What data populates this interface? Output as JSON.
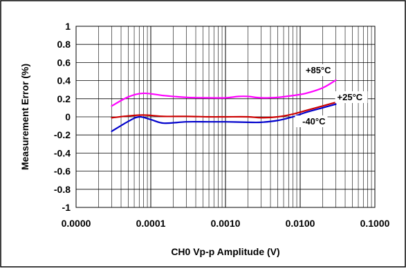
{
  "chart_data": {
    "type": "line",
    "title": "",
    "xlabel": "CH0 Vp-p Amplitude (V)",
    "ylabel": "Measurement Error (%)",
    "x_scale": "log",
    "xlim": [
      1e-05,
      0.1
    ],
    "ylim": [
      -1,
      1
    ],
    "x_ticks": [
      1e-05,
      0.0001,
      0.001,
      0.01,
      0.1
    ],
    "x_tick_labels": [
      "0.0000",
      "0.0001",
      "0.0010",
      "0.0100",
      "0.1000"
    ],
    "y_ticks": [
      -1,
      -0.8,
      -0.6,
      -0.4,
      -0.2,
      0,
      0.2,
      0.4,
      0.6,
      0.8,
      1
    ],
    "y_tick_labels": [
      "-1",
      "-0.8",
      "-0.6",
      "-0.4",
      "-0.2",
      "0",
      "0.2",
      "0.4",
      "0.6",
      "0.8",
      "1"
    ],
    "grid": {
      "x_major": true,
      "x_minor": true,
      "y_major": true
    },
    "legend": "none",
    "series": [
      {
        "name": "+85°C",
        "color": "#ff00ff",
        "points": [
          [
            3e-05,
            0.12
          ],
          [
            5e-05,
            0.22
          ],
          [
            8e-05,
            0.26
          ],
          [
            0.00015,
            0.235
          ],
          [
            0.0003,
            0.215
          ],
          [
            0.0006,
            0.21
          ],
          [
            0.001,
            0.21
          ],
          [
            0.0015,
            0.225
          ],
          [
            0.002,
            0.225
          ],
          [
            0.003,
            0.21
          ],
          [
            0.005,
            0.215
          ],
          [
            0.008,
            0.235
          ],
          [
            0.012,
            0.26
          ],
          [
            0.02,
            0.32
          ],
          [
            0.03,
            0.405
          ]
        ]
      },
      {
        "name": "+25°C",
        "color": "#cc0000",
        "points": [
          [
            3e-05,
            -0.01
          ],
          [
            5e-05,
            0.01
          ],
          [
            8e-05,
            0.02
          ],
          [
            0.00015,
            0.005
          ],
          [
            0.0003,
            0.005
          ],
          [
            0.0006,
            0.0
          ],
          [
            0.001,
            0.0
          ],
          [
            0.002,
            0.0
          ],
          [
            0.003,
            -0.01
          ],
          [
            0.005,
            0.0
          ],
          [
            0.008,
            0.03
          ],
          [
            0.012,
            0.07
          ],
          [
            0.02,
            0.12
          ],
          [
            0.03,
            0.16
          ]
        ]
      },
      {
        "name": "-40°C",
        "color": "#0000cc",
        "points": [
          [
            3e-05,
            -0.16
          ],
          [
            5e-05,
            -0.05
          ],
          [
            7e-05,
            0.0
          ],
          [
            0.0001,
            -0.03
          ],
          [
            0.00015,
            -0.07
          ],
          [
            0.0003,
            -0.055
          ],
          [
            0.0006,
            -0.055
          ],
          [
            0.001,
            -0.055
          ],
          [
            0.002,
            -0.06
          ],
          [
            0.003,
            -0.06
          ],
          [
            0.005,
            -0.04
          ],
          [
            0.008,
            0.0
          ],
          [
            0.012,
            0.05
          ],
          [
            0.02,
            0.1
          ],
          [
            0.03,
            0.14
          ]
        ]
      }
    ]
  }
}
